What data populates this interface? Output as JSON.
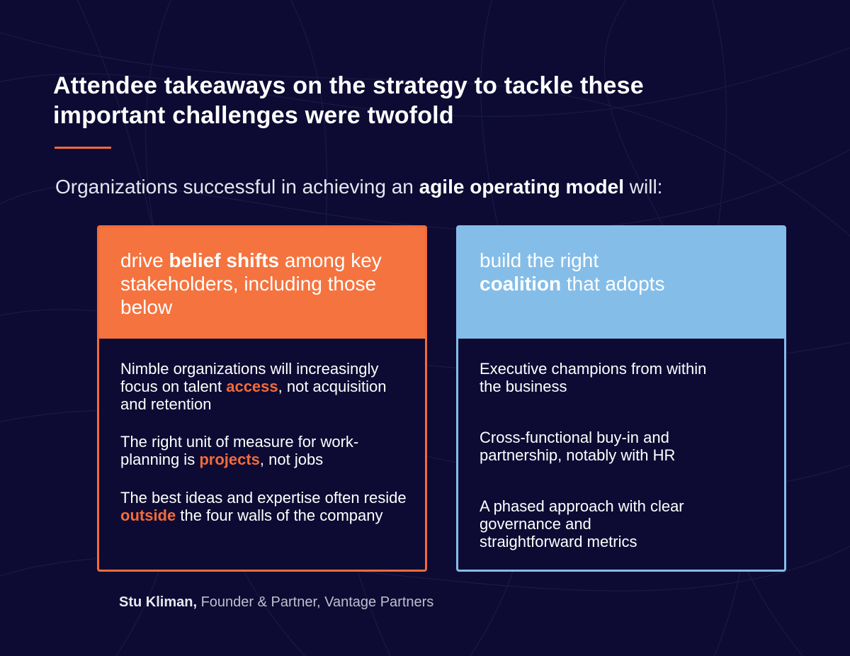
{
  "title": "Attendee takeaways on the strategy to tackle these important challenges were twofold",
  "subtitle": {
    "prefix": "Organizations successful in achieving an ",
    "bold": "agile operating model",
    "suffix": " will:"
  },
  "left_card": {
    "header": {
      "prefix": "drive ",
      "bold": "belief shifts",
      "suffix": " among key stakeholders, including those below"
    },
    "items": [
      {
        "prefix": "Nimble organizations will increasingly focus on talent ",
        "highlight": "access",
        "suffix": ", not acquisition and retention"
      },
      {
        "prefix": "The right unit of measure for work-planning is ",
        "highlight": "projects",
        "suffix": ", not jobs"
      },
      {
        "prefix": "The best ideas and expertise often reside ",
        "highlight": "outside",
        "suffix": " the four walls of the company"
      }
    ]
  },
  "right_card": {
    "header": {
      "prefix": "build the right ",
      "bold": "coalition",
      "suffix": " that adopts"
    },
    "items": [
      {
        "text": "Executive champions from within the business"
      },
      {
        "text": "Cross-functional buy-in and partnership, notably with HR"
      },
      {
        "text": "A phased approach with clear governance and straightforward metrics"
      }
    ]
  },
  "credit": {
    "name": "Stu Kliman,",
    "role": " Founder & Partner, Vantage Partners"
  },
  "colors": {
    "background": "#0d0b33",
    "orange": "#f26b3a",
    "blue": "#84bde8"
  }
}
